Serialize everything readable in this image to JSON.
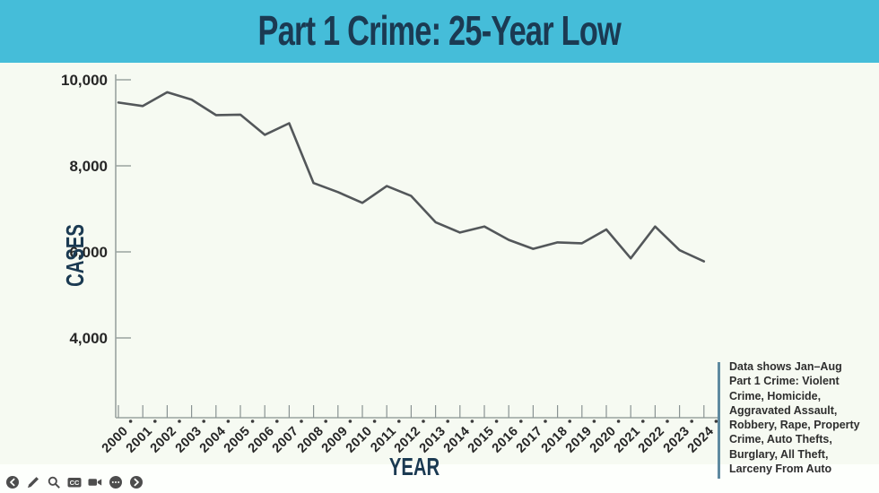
{
  "header": {
    "title": "Part 1 Crime: 25-Year Low"
  },
  "chart_data": {
    "type": "line",
    "title": "Part 1 Crime: 25-Year Low",
    "xlabel": "YEAR",
    "ylabel": "CASES",
    "x": [
      2000,
      2001,
      2002,
      2003,
      2004,
      2005,
      2006,
      2007,
      2008,
      2009,
      2010,
      2011,
      2012,
      2013,
      2014,
      2015,
      2016,
      2017,
      2018,
      2019,
      2020,
      2021,
      2022,
      2023,
      2024
    ],
    "values": [
      9470,
      9390,
      9710,
      9540,
      9180,
      9190,
      8720,
      8990,
      7600,
      7390,
      7140,
      7530,
      7300,
      6690,
      6450,
      6590,
      6280,
      6070,
      6220,
      6200,
      6520,
      5850,
      6590,
      6040,
      5780
    ],
    "yticks": [
      10000,
      8000,
      6000,
      4000
    ],
    "ytick_labels": [
      "10,000",
      "8,000",
      "6,000",
      "4,000"
    ],
    "ylim": [
      2200,
      10150
    ],
    "grid": false,
    "legend": false,
    "line_color": "#53575a",
    "axis_color": "#9aa3a0",
    "tick_dot_color": "#3a3a3a",
    "tick_label_color": "#262626"
  },
  "annotation": {
    "text": "Data shows Jan–Aug\nPart 1 Crime: Violent\nCrime, Homicide,\nAggravated Assault,\nRobbery, Rape, Property\nCrime, Auto Thefts,\nBurglary, All Theft,\nLarceny From Auto"
  },
  "toolbar": {
    "icons": [
      "back-icon",
      "pencil-icon",
      "search-icon",
      "cc-icon",
      "camera-icon",
      "more-icon",
      "forward-icon"
    ]
  },
  "colors": {
    "header_bg": "#45bdd9",
    "header_edge": "#35abc6",
    "title_text": "#1b3a52",
    "chart_bg": "#f6faf2",
    "footer_bg": "#fdfffc",
    "annotation_bar": "#5f8aa0",
    "icon": "#4d4d4d"
  }
}
